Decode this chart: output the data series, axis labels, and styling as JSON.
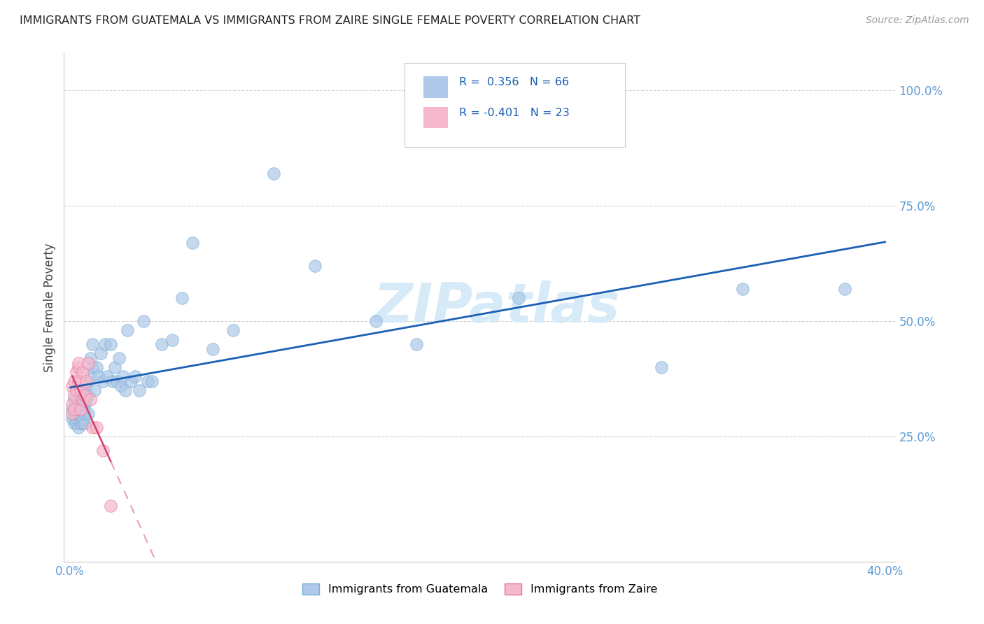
{
  "title": "IMMIGRANTS FROM GUATEMALA VS IMMIGRANTS FROM ZAIRE SINGLE FEMALE POVERTY CORRELATION CHART",
  "source": "Source: ZipAtlas.com",
  "ylabel": "Single Female Poverty",
  "xlim": [
    -0.003,
    0.405
  ],
  "ylim": [
    -0.02,
    1.08
  ],
  "ytick_vals": [
    0.25,
    0.5,
    0.75,
    1.0
  ],
  "ytick_labels": [
    "25.0%",
    "50.0%",
    "75.0%",
    "100.0%"
  ],
  "xtick_vals": [
    0.0,
    0.1,
    0.2,
    0.3,
    0.4
  ],
  "xtick_labels": [
    "0.0%",
    "",
    "",
    "",
    "40.0%"
  ],
  "guatemala_color": "#adc8e8",
  "guatemala_edge": "#7bafd4",
  "zaire_color": "#f5b8cc",
  "zaire_edge": "#e8789a",
  "trend_guatemala_color": "#1a5fb4",
  "trend_zaire_color": "#d44070",
  "r_guatemala": 0.356,
  "n_guatemala": 66,
  "r_zaire": -0.401,
  "n_zaire": 23,
  "marker_size": 160,
  "marker_alpha": 0.7,
  "watermark": "ZIPatlas",
  "watermark_color": "#d6eaf8",
  "background_color": "#ffffff",
  "grid_color": "#d0d0d0",
  "tick_color": "#5b9bd5",
  "guatemala_x": [
    0.001,
    0.001,
    0.002,
    0.002,
    0.002,
    0.003,
    0.003,
    0.003,
    0.003,
    0.004,
    0.004,
    0.004,
    0.005,
    0.005,
    0.005,
    0.005,
    0.006,
    0.006,
    0.006,
    0.007,
    0.007,
    0.007,
    0.008,
    0.008,
    0.009,
    0.009,
    0.01,
    0.01,
    0.011,
    0.011,
    0.012,
    0.013,
    0.014,
    0.015,
    0.016,
    0.017,
    0.018,
    0.02,
    0.021,
    0.022,
    0.023,
    0.024,
    0.025,
    0.026,
    0.027,
    0.028,
    0.03,
    0.032,
    0.034,
    0.036,
    0.038,
    0.04,
    0.045,
    0.05,
    0.055,
    0.06,
    0.07,
    0.08,
    0.1,
    0.12,
    0.15,
    0.17,
    0.22,
    0.29,
    0.33,
    0.38
  ],
  "guatemala_y": [
    0.29,
    0.31,
    0.28,
    0.3,
    0.33,
    0.28,
    0.3,
    0.29,
    0.31,
    0.27,
    0.3,
    0.32,
    0.29,
    0.28,
    0.3,
    0.32,
    0.28,
    0.29,
    0.31,
    0.28,
    0.3,
    0.32,
    0.33,
    0.36,
    0.3,
    0.34,
    0.38,
    0.42,
    0.4,
    0.45,
    0.35,
    0.4,
    0.38,
    0.43,
    0.37,
    0.45,
    0.38,
    0.45,
    0.37,
    0.4,
    0.37,
    0.42,
    0.36,
    0.38,
    0.35,
    0.48,
    0.37,
    0.38,
    0.35,
    0.5,
    0.37,
    0.37,
    0.45,
    0.46,
    0.55,
    0.67,
    0.44,
    0.48,
    0.82,
    0.62,
    0.5,
    0.45,
    0.55,
    0.4,
    0.57,
    0.57
  ],
  "zaire_x": [
    0.001,
    0.001,
    0.001,
    0.002,
    0.002,
    0.002,
    0.003,
    0.003,
    0.004,
    0.004,
    0.004,
    0.005,
    0.005,
    0.006,
    0.006,
    0.007,
    0.008,
    0.009,
    0.01,
    0.011,
    0.013,
    0.016,
    0.02
  ],
  "zaire_y": [
    0.3,
    0.32,
    0.36,
    0.31,
    0.34,
    0.37,
    0.35,
    0.39,
    0.37,
    0.4,
    0.41,
    0.31,
    0.35,
    0.39,
    0.33,
    0.34,
    0.37,
    0.41,
    0.33,
    0.27,
    0.27,
    0.22,
    0.1
  ]
}
